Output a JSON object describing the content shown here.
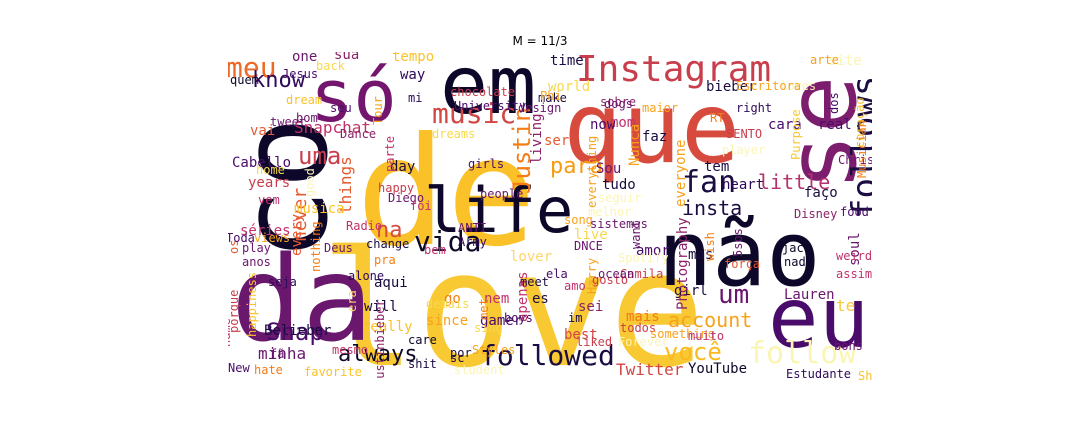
{
  "title": "M = 11/3",
  "words": [
    {
      "text": "love",
      "color": "#f8c932"
    },
    {
      "text": "de",
      "color": "#fac228"
    },
    {
      "text": "que",
      "color": "#d74b3f"
    },
    {
      "text": "não",
      "color": "#0d0829"
    },
    {
      "text": "co",
      "color": "#0d0829"
    },
    {
      "text": "da",
      "color": "#6a176e"
    },
    {
      "text": "eu",
      "color": "#4a0c6b"
    },
    {
      "text": "se",
      "color": "#7c1d6d"
    },
    {
      "text": "só",
      "color": "#74166e"
    },
    {
      "text": "em",
      "color": "#0d0829"
    },
    {
      "text": "life",
      "color": "#0d0829"
    },
    {
      "text": "Instagram",
      "color": "#c83e4d"
    },
    {
      "text": "follows",
      "color": "#1b0c41"
    },
    {
      "text": "follow",
      "color": "#fbf5b4"
    },
    {
      "text": "followed",
      "color": "#1b0c41"
    },
    {
      "text": "você",
      "color": "#fbba1f"
    },
    {
      "text": "vida",
      "color": "#0d0829"
    },
    {
      "text": "fan",
      "color": "#1b0c41"
    },
    {
      "text": "Snap",
      "color": "#4a0c6b"
    },
    {
      "text": "always",
      "color": "#0d0829"
    },
    {
      "text": "music",
      "color": "#d24644"
    },
    {
      "text": "meu",
      "color": "#ed6925"
    },
    {
      "text": "um",
      "color": "#6a176e"
    },
    {
      "text": "uma",
      "color": "#c83e4d"
    },
    {
      "text": "account",
      "color": "#f7a21b"
    },
    {
      "text": "know",
      "color": "#2e0a5a"
    },
    {
      "text": "little",
      "color": "#b5326d"
    },
    {
      "text": "insta",
      "color": "#1b0c41"
    },
    {
      "text": "Justin",
      "color": "#f57d15"
    },
    {
      "text": "para",
      "color": "#f89a10"
    },
    {
      "text": "Snapchat",
      "color": "#c1326b"
    },
    {
      "text": "na",
      "color": "#d74b3f"
    },
    {
      "text": "never",
      "color": "#e45a31"
    },
    {
      "text": "Twitter",
      "color": "#d24644"
    },
    {
      "text": "YouTube",
      "color": "#0d0829"
    },
    {
      "text": "Belieber",
      "color": "#1b0c41"
    },
    {
      "text": "minha",
      "color": "#6a176e"
    },
    {
      "text": "Cabello",
      "color": "#4a0c6b"
    },
    {
      "text": "things",
      "color": "#e3592e"
    },
    {
      "text": "day",
      "color": "#1b0c41"
    },
    {
      "text": "tudo",
      "color": "#1b0c41"
    },
    {
      "text": "people",
      "color": "#6a176e"
    },
    {
      "text": "apenas",
      "color": "#c1326b"
    },
    {
      "text": "sei",
      "color": "#8b2369"
    },
    {
      "text": "mais",
      "color": "#f37819"
    },
    {
      "text": "will",
      "color": "#1b0c41"
    },
    {
      "text": "aqui",
      "color": "#1b0c41"
    },
    {
      "text": "pra",
      "color": "#f57d15"
    },
    {
      "text": "change",
      "color": "#1b0c41"
    },
    {
      "text": "Deus",
      "color": "#6a176e"
    },
    {
      "text": "girl",
      "color": "#1b0c41"
    },
    {
      "text": "Camila",
      "color": "#c83e4d"
    },
    {
      "text": "amor",
      "color": "#4a0c6b"
    },
    {
      "text": "mas",
      "color": "#1b0c41"
    },
    {
      "text": "Harry",
      "color": "#f7a21b"
    },
    {
      "text": "bieber",
      "color": "#1b0c41"
    },
    {
      "text": "world",
      "color": "#f9d94b"
    },
    {
      "text": "sobre",
      "color": "#8b2369"
    },
    {
      "text": "make",
      "color": "#1b0c41"
    },
    {
      "text": "time",
      "color": "#1b0c41"
    },
    {
      "text": "way",
      "color": "#2e0a5a"
    },
    {
      "text": "one",
      "color": "#6a176e"
    },
    {
      "text": "sua",
      "color": "#8b2369"
    },
    {
      "text": "tempo",
      "color": "#fac228"
    },
    {
      "text": "site",
      "color": "#fbf5b4"
    },
    {
      "text": "cara",
      "color": "#4a0c6b"
    },
    {
      "text": "real",
      "color": "#4a0c6b"
    },
    {
      "text": "faz",
      "color": "#1b0c41"
    },
    {
      "text": "mom",
      "color": "#c1326b"
    },
    {
      "text": "now",
      "color": "#4a0c6b"
    },
    {
      "text": "vai",
      "color": "#e45a31"
    },
    {
      "text": "years",
      "color": "#c83e4d"
    },
    {
      "text": "séries",
      "color": "#c1326b"
    },
    {
      "text": "good",
      "color": "#fbf5b4"
    },
    {
      "text": "Sou",
      "color": "#6a176e"
    },
    {
      "text": "tem",
      "color": "#1b0c41"
    },
    {
      "text": "faço",
      "color": "#1b0c41"
    },
    {
      "text": "soul",
      "color": "#6a176e"
    },
    {
      "text": "ser",
      "color": "#e45a31"
    },
    {
      "text": "living",
      "color": "#8b2369"
    },
    {
      "text": "everything",
      "color": "#f7a21b"
    },
    {
      "text": "lover",
      "color": "#fcd56a"
    },
    {
      "text": "es",
      "color": "#1b0c41"
    },
    {
      "text": "nem",
      "color": "#c1326b"
    },
    {
      "text": "go",
      "color": "#f57d15"
    },
    {
      "text": "ela",
      "color": "#4a0c6b"
    },
    {
      "text": "meet",
      "color": "#1b0c41"
    },
    {
      "text": "since",
      "color": "#f7a21b"
    },
    {
      "text": "best",
      "color": "#d24644"
    },
    {
      "text": "gamer",
      "color": "#4a0c6b"
    },
    {
      "text": "really",
      "color": "#fac228"
    },
    {
      "text": "por",
      "color": "#1b0c41"
    },
    {
      "text": "shit",
      "color": "#1b0c41"
    },
    {
      "text": "sc",
      "color": "#1b0c41"
    },
    {
      "text": "im",
      "color": "#1b0c41"
    },
    {
      "text": "liked",
      "color": "#c83e4d"
    },
    {
      "text": "musica",
      "color": "#fac228"
    },
    {
      "text": "os",
      "color": "#e45a31"
    },
    {
      "text": "Lauren",
      "color": "#6a176e"
    },
    {
      "text": "te",
      "color": "#f8c932"
    },
    {
      "text": "Army",
      "color": "#2e0a5a"
    },
    {
      "text": "ANTI",
      "color": "#6a176e"
    },
    {
      "text": "boys",
      "color": "#4a0c6b"
    },
    {
      "text": "want",
      "color": "#6a176e"
    },
    {
      "text": "live",
      "color": "#f9d94b"
    },
    {
      "text": "heart",
      "color": "#2e0a5a"
    },
    {
      "text": "food",
      "color": "#4a0c6b"
    },
    {
      "text": "Disney",
      "color": "#8b2369"
    },
    {
      "text": "Chris",
      "color": "#6a176e"
    },
    {
      "text": "happy",
      "color": "#c83e4d"
    },
    {
      "text": "Diego",
      "color": "#6a176e"
    },
    {
      "text": "girls",
      "color": "#4a0c6b"
    },
    {
      "text": "seguir",
      "color": "#fbf5b4"
    },
    {
      "text": "melhor",
      "color": "#fbf5b4"
    },
    {
      "text": "everyone",
      "color": "#f7a21b"
    },
    {
      "text": "Nunca",
      "color": "#f7a21b"
    },
    {
      "text": "SENTO",
      "color": "#c83e4d"
    },
    {
      "text": "Phi",
      "color": "#f7a21b"
    },
    {
      "text": "design",
      "color": "#6a176e"
    },
    {
      "text": "University",
      "color": "#4a0c6b"
    },
    {
      "text": "chocolate",
      "color": "#c83e4d"
    },
    {
      "text": "maior",
      "color": "#f7a21b"
    },
    {
      "text": "right",
      "color": "#2e0a5a"
    },
    {
      "text": "dogs",
      "color": "#6a176e"
    },
    {
      "text": "player",
      "color": "#fbf5b4"
    },
    {
      "text": "arte",
      "color": "#f7a21b"
    },
    {
      "text": "loves",
      "color": "#fbf5b4"
    },
    {
      "text": "Purpose",
      "color": "#f8c932"
    },
    {
      "text": "dos",
      "color": "#4a0c6b"
    },
    {
      "text": "coração",
      "color": "#fac228"
    },
    {
      "text": "Musician",
      "color": "#f57d15"
    },
    {
      "text": "Escritora",
      "color": "#f7a21b"
    },
    {
      "text": "RT",
      "color": "#f57d15"
    },
    {
      "text": "tweet",
      "color": "#6a176e"
    },
    {
      "text": "home",
      "color": "#f9d94b"
    },
    {
      "text": "vem",
      "color": "#c1326b"
    },
    {
      "text": "dream",
      "color": "#fac228"
    },
    {
      "text": "bom",
      "color": "#6a176e"
    },
    {
      "text": "quem",
      "color": "#0d0829"
    },
    {
      "text": "back",
      "color": "#f9d94b"
    },
    {
      "text": "Jesus",
      "color": "#4a0c6b"
    },
    {
      "text": "seu",
      "color": "#4a0c6b"
    },
    {
      "text": "mi",
      "color": "#2e0a5a"
    },
    {
      "text": "Tour",
      "color": "#f7a21b"
    },
    {
      "text": "parte",
      "color": "#c1326b"
    },
    {
      "text": "Dance",
      "color": "#8b2369"
    },
    {
      "text": "dreams",
      "color": "#f9d94b"
    },
    {
      "text": "every",
      "color": "#e45a31"
    },
    {
      "text": "nothing",
      "color": "#f57d15"
    },
    {
      "text": "Radio",
      "color": "#c1326b"
    },
    {
      "text": "foi",
      "color": "#c1326b"
    },
    {
      "text": "play",
      "color": "#6a176e"
    },
    {
      "text": "anos",
      "color": "#6a176e"
    },
    {
      "text": "Toda",
      "color": "#4a0c6b"
    },
    {
      "text": "views",
      "color": "#f7a21b"
    },
    {
      "text": "happiness",
      "color": "#fac228"
    },
    {
      "text": "seja",
      "color": "#2e0a5a"
    },
    {
      "text": "porque",
      "color": "#c83e4d"
    },
    {
      "text": "name",
      "color": "#c1326b"
    },
    {
      "text": "era",
      "color": "#fcd56a"
    },
    {
      "text": "justinbieber",
      "color": "#8b2369"
    },
    {
      "text": "alone",
      "color": "#2e0a5a"
    },
    {
      "text": "met",
      "color": "#f57d15"
    },
    {
      "text": "bem",
      "color": "#c1326b"
    },
    {
      "text": "demais",
      "color": "#f9d94b"
    },
    {
      "text": "sing",
      "color": "#f9d94b"
    },
    {
      "text": "care",
      "color": "#0d0829"
    },
    {
      "text": "fã",
      "color": "#6a176e"
    },
    {
      "text": "New",
      "color": "#4a0c6b"
    },
    {
      "text": "hate",
      "color": "#f57d15"
    },
    {
      "text": "favorite",
      "color": "#fac228"
    },
    {
      "text": "student",
      "color": "#fbf5b4"
    },
    {
      "text": "mesmo",
      "color": "#c1326b"
    },
    {
      "text": "Styles",
      "color": "#f7a21b"
    },
    {
      "text": "DNCE",
      "color": "#6a176e"
    },
    {
      "text": "song",
      "color": "#f7a21b"
    },
    {
      "text": "Spotify",
      "color": "#fbf5b4"
    },
    {
      "text": "gosto",
      "color": "#c83e4d"
    },
    {
      "text": "ocean",
      "color": "#6a176e"
    },
    {
      "text": "amo",
      "color": "#c1326b"
    },
    {
      "text": "todos",
      "color": "#c83e4d"
    },
    {
      "text": "something",
      "color": "#f7a21b"
    },
    {
      "text": "muito",
      "color": "#c1326b"
    },
    {
      "text": "Forever",
      "color": "#fbf5b4"
    },
    {
      "text": "Photography",
      "color": "#8b2369"
    },
    {
      "text": "wish",
      "color": "#f57d15"
    },
    {
      "text": "força",
      "color": "#e45a31"
    },
    {
      "text": "5sos",
      "color": "#6a176e"
    },
    {
      "text": "jack",
      "color": "#0d0829"
    },
    {
      "text": "nada",
      "color": "#0d0829"
    },
    {
      "text": "assim",
      "color": "#c1326b"
    },
    {
      "text": "weird",
      "color": "#c1326b"
    },
    {
      "text": "bons",
      "color": "#6a176e"
    },
    {
      "text": "ShawnMendes",
      "color": "#fac228"
    },
    {
      "text": "Estudante",
      "color": "#2e0a5a"
    },
    {
      "text": "sistemas",
      "color": "#6a176e"
    }
  ]
}
